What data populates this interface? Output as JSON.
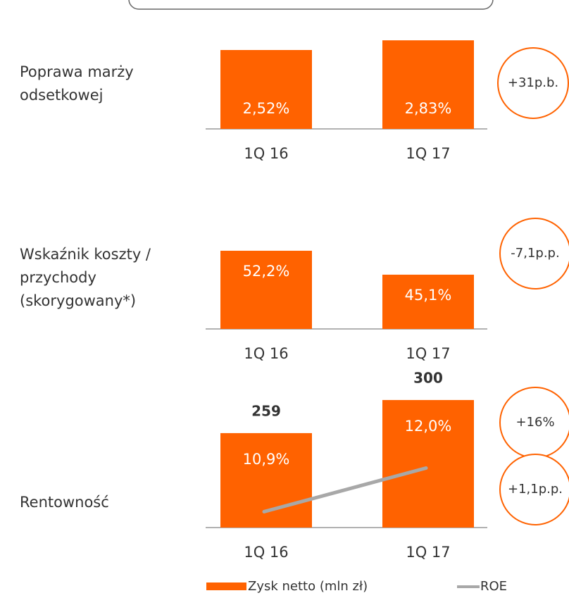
{
  "chart_data": [
    {
      "type": "bar",
      "title": "Poprawa marży odsetkowej",
      "categories": [
        "1Q 16",
        "1Q 17"
      ],
      "series": [
        {
          "color": "#ff6200",
          "values": [
            2.52,
            2.83
          ],
          "value_labels": [
            "2,52%",
            "2,83%"
          ]
        }
      ],
      "ylim": [
        0,
        4.5
      ],
      "annotations": [
        "+31p.b."
      ]
    },
    {
      "type": "bar",
      "title": "Wskaźnik koszty / przychody (skorygowany*)",
      "categories": [
        "1Q 16",
        "1Q 17"
      ],
      "series": [
        {
          "color": "#ff6200",
          "values": [
            52.2,
            45.1
          ],
          "value_labels": [
            "52,2%",
            "45,1%"
          ]
        }
      ],
      "ylim": [
        29,
        70.8
      ],
      "annotations": [
        "-7,1p.p."
      ]
    },
    {
      "type": "bar",
      "title": "Rentowność",
      "categories": [
        "1Q 16",
        "1Q 17"
      ],
      "series": [
        {
          "name": "Zysk netto (mln zł)",
          "color": "#ff6200",
          "values": [
            259,
            300
          ]
        },
        {
          "name": "ROE",
          "color": "#a8a8a8",
          "axis": "y2",
          "values": [
            10.9,
            12.0
          ],
          "value_labels": [
            "10,9%",
            "12,0%"
          ]
        }
      ],
      "ylim": [
        142,
        316.5
      ],
      "y2lim": [
        10.5,
        14.05
      ],
      "annotations": [
        "+16%",
        "+1,1p.p."
      ]
    }
  ]
}
